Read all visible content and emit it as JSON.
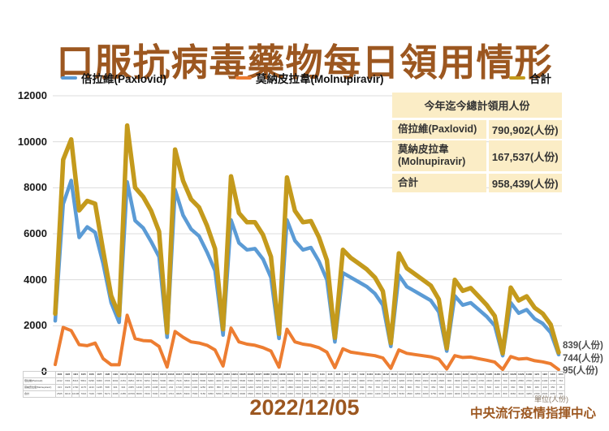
{
  "title": "口服抗病毒藥物每日領用情形",
  "legend": {
    "items": [
      {
        "label": "倍拉維(Paxlovid)",
        "color": "#5B9BD5"
      },
      {
        "label": "莫納皮拉韋(Molnupiravir)",
        "color": "#ED7D31"
      },
      {
        "label": "合計",
        "color": "#C49A1C"
      }
    ]
  },
  "summary_box": {
    "title": "今年迄今總計領用人份",
    "rows": [
      {
        "label": "倍拉維(Paxlovid)",
        "value": "790,902(人份)"
      },
      {
        "label": "莫納皮拉韋(Molnupiravir)",
        "value": "167,537(人份)"
      },
      {
        "label": "合計",
        "value": "958,439(人份)"
      }
    ],
    "background": "#FBEDC6"
  },
  "endpoint_labels": [
    "839(人份)",
    "744(人份)",
    "95(人份)"
  ],
  "footer": {
    "date": "2022/12/05",
    "unit": "單位(人份)",
    "source": "中央流行疫情指揮中心"
  },
  "colors": {
    "title_brown": "#9C5720",
    "paxlovid_blue": "#5B9BD5",
    "molnupiravir_orange": "#ED7D31",
    "total_gold": "#C49A1C",
    "gridline": "#DCDCDC",
    "axis": "#BFBFBF"
  },
  "chart_data": {
    "type": "line",
    "title": "口服抗病毒藥物每日領用情形",
    "xlabel": "",
    "ylabel": "",
    "ylim": [
      0,
      12000
    ],
    "y_ticks": [
      0,
      2000,
      4000,
      6000,
      8000,
      10000,
      12000
    ],
    "grid": true,
    "legend_position": "top",
    "x": [
      "10/2",
      "10/3",
      "10/4",
      "10/5",
      "10/6",
      "10/7",
      "10/8",
      "10/9",
      "10/10",
      "10/11",
      "10/12",
      "10/13",
      "10/14",
      "10/15",
      "10/16",
      "10/17",
      "10/18",
      "10/19",
      "10/20",
      "10/21",
      "10/22",
      "10/23",
      "10/24",
      "10/25",
      "10/26",
      "10/27",
      "10/28",
      "10/29",
      "10/30",
      "10/31",
      "11/1",
      "11/2",
      "11/3",
      "11/4",
      "11/5",
      "11/6",
      "11/7",
      "11/8",
      "11/9",
      "11/10",
      "11/11",
      "11/12",
      "11/13",
      "11/14",
      "11/15",
      "11/16",
      "11/17",
      "11/18",
      "11/19",
      "11/20",
      "11/21",
      "11/22",
      "11/23",
      "11/24",
      "11/25",
      "11/26",
      "11/27",
      "11/28",
      "11/29",
      "11/30",
      "12/1",
      "12/2",
      "12/3",
      "12/4"
    ],
    "series": [
      {
        "name": "倍拉維(Paxlovid)",
        "color": "#5B9BD5",
        "stroke_width": 4.5,
        "values": [
          2212,
          7291,
          8316,
          5841,
          6296,
          6060,
          4706,
          3002,
          2151,
          8254,
          6570,
          6254,
          5662,
          5000,
          1500,
          7916,
          6800,
          6200,
          5900,
          5200,
          4400,
          1600,
          6600,
          5600,
          5300,
          5350,
          4900,
          4100,
          1450,
          6600,
          5700,
          5300,
          5400,
          4800,
          4000,
          1300,
          4300,
          4100,
          3900,
          3700,
          3400,
          2900,
          1100,
          4200,
          3700,
          3500,
          3300,
          3100,
          2600,
          900,
          3300,
          2900,
          3000,
          2700,
          2400,
          2000,
          700,
          3000,
          2550,
          2700,
          2300,
          2100,
          1700,
          744
        ]
      },
      {
        "name": "莫納皮拉韋(Molnupiravir)",
        "color": "#ED7D31",
        "stroke_width": 4,
        "values": [
          313,
          1928,
          1790,
          1175,
          1133,
          1245,
          568,
          304,
          304,
          2455,
          1439,
          1355,
          1338,
          1100,
          204,
          1749,
          1500,
          1300,
          1250,
          1150,
          950,
          250,
          1900,
          1300,
          1200,
          1150,
          1050,
          900,
          200,
          1850,
          1300,
          1200,
          1150,
          1050,
          850,
          180,
          1000,
          850,
          800,
          750,
          700,
          600,
          150,
          950,
          800,
          750,
          700,
          650,
          550,
          120,
          700,
          620,
          640,
          570,
          500,
          420,
          100,
          660,
          550,
          580,
          480,
          430,
          350,
          95
        ]
      },
      {
        "name": "合計",
        "color": "#C49A1C",
        "stroke_width": 5.5,
        "values": [
          2525,
          9219,
          10106,
          7016,
          7429,
          7305,
          5274,
          3306,
          2455,
          10709,
          8009,
          7609,
          7000,
          6100,
          1704,
          9665,
          8300,
          7500,
          7150,
          6350,
          5350,
          1850,
          8500,
          6900,
          6500,
          6500,
          5950,
          5000,
          1650,
          8450,
          7000,
          6500,
          6550,
          5850,
          4850,
          1480,
          5300,
          4950,
          4700,
          4450,
          4100,
          3500,
          1250,
          5150,
          4500,
          4250,
          4000,
          3750,
          3150,
          1020,
          4000,
          3520,
          3640,
          3270,
          2900,
          2420,
          800,
          3660,
          3100,
          3280,
          2780,
          2530,
          2050,
          839
        ]
      }
    ],
    "annotations_last_values": {
      "合計": 839,
      "倍拉維(Paxlovid)": 744,
      "莫納皮拉韋(Molnupiravir)": 95
    }
  }
}
